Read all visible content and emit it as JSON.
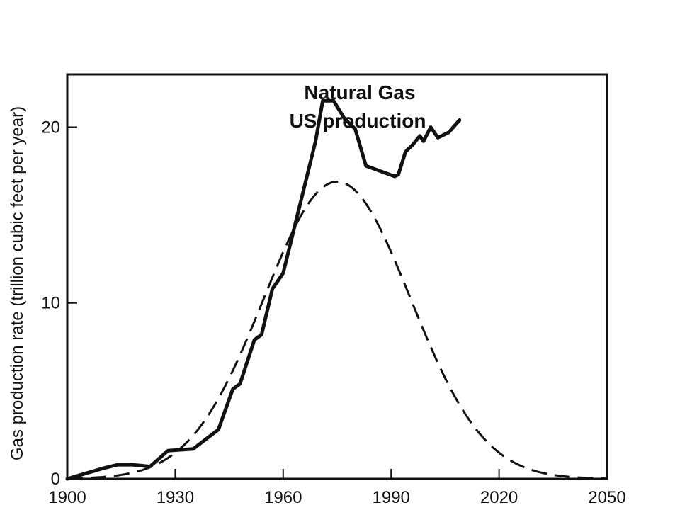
{
  "chart_data": {
    "type": "line",
    "title_lines": [
      "Natural Gas",
      "US production"
    ],
    "xlabel": "",
    "ylabel": "Gas production rate (trillion cubic feet per year)",
    "xlim": [
      1900,
      2050
    ],
    "ylim": [
      0,
      23
    ],
    "x_ticks": [
      1900,
      1930,
      1960,
      1990,
      2020,
      2050
    ],
    "y_ticks": [
      0,
      10,
      20
    ],
    "grid": false,
    "legend": "none",
    "series": [
      {
        "style": "solid",
        "x": [
          1900,
          1905,
          1910,
          1914,
          1918,
          1923,
          1928,
          1935,
          1942,
          1946,
          1948,
          1952,
          1954,
          1957,
          1960,
          1963,
          1966,
          1969,
          1971,
          1974,
          1977,
          1980,
          1983,
          1987,
          1991,
          1992,
          1994,
          1996,
          1998,
          1999,
          2000,
          2001,
          2003,
          2006,
          2009
        ],
        "y": [
          0,
          0.3,
          0.6,
          0.8,
          0.8,
          0.7,
          1.6,
          1.7,
          2.8,
          5.1,
          5.4,
          7.9,
          8.2,
          10.8,
          11.7,
          14.2,
          16.7,
          19.2,
          21.5,
          21.5,
          20.5,
          19.9,
          17.8,
          17.5,
          17.2,
          17.3,
          18.6,
          19.0,
          19.5,
          19.2,
          19.6,
          20.0,
          19.4,
          19.7,
          20.4
        ]
      },
      {
        "style": "dashed",
        "peak_x": 1975,
        "peak_y": 16.9,
        "sigma": 20.4
      }
    ]
  },
  "colors": {
    "line": "#111111",
    "axis": "#111111",
    "background": "#ffffff"
  }
}
